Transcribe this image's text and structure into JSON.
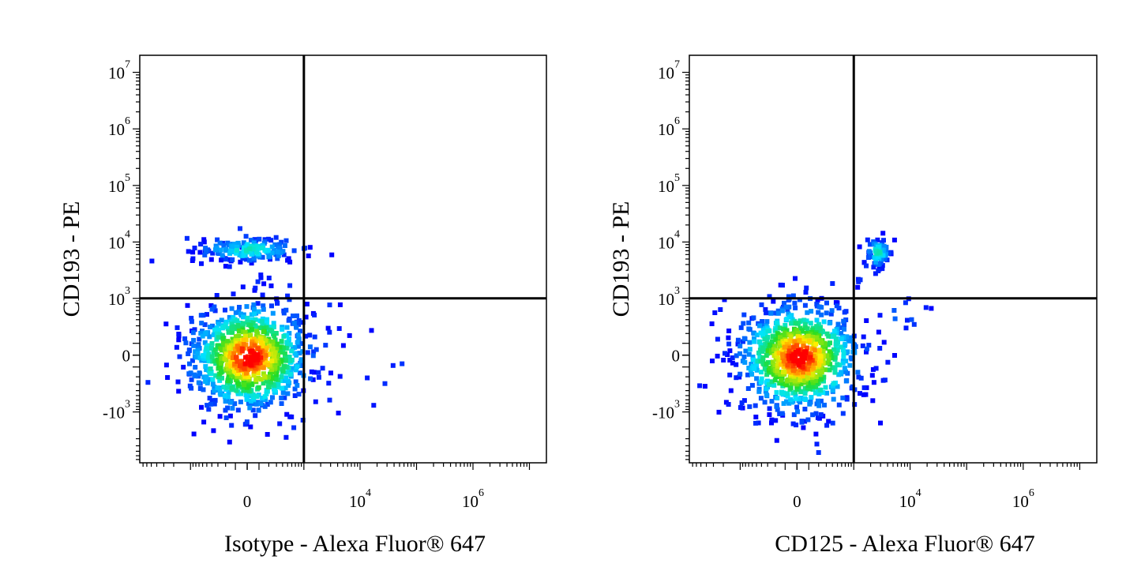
{
  "chart_data": [
    {
      "type": "scatter",
      "title": "",
      "xlabel": "Isotype - Alexa Fluor® 647",
      "ylabel": "CD193 - PE",
      "x_scale": "biexponential",
      "y_scale": "biexponential",
      "x_ticks": [
        {
          "base": "0",
          "exp": ""
        },
        {
          "base": "10",
          "exp": "4"
        },
        {
          "base": "10",
          "exp": "6"
        }
      ],
      "y_ticks": [
        {
          "base": "10",
          "exp": "7"
        },
        {
          "base": "10",
          "exp": "6"
        },
        {
          "base": "10",
          "exp": "5"
        },
        {
          "base": "10",
          "exp": "4"
        },
        {
          "base": "10",
          "exp": "3"
        },
        {
          "base": "0",
          "exp": ""
        },
        {
          "base": "-10",
          "exp": "3"
        }
      ],
      "quadrant_gate": {
        "x": 1000,
        "y": 1000
      },
      "colormap": "density (blue → cyan → green → yellow → red)",
      "populations": [
        {
          "id": "double-negative",
          "x_center": 0,
          "y_center": 0,
          "n": 900,
          "density_peak": "red"
        },
        {
          "id": "cd193-positive",
          "x_center": 0,
          "y_center": 8000,
          "n": 170,
          "density_peak": "cyan"
        },
        {
          "id": "x-positive-scatter",
          "x_center": 9000,
          "y_center": -100,
          "n": 8,
          "density_peak": "blue"
        }
      ]
    },
    {
      "type": "scatter",
      "title": "",
      "xlabel": "CD125 - Alexa Fluor® 647",
      "ylabel": "CD193 - PE",
      "x_scale": "biexponential",
      "y_scale": "biexponential",
      "x_ticks": [
        {
          "base": "0",
          "exp": ""
        },
        {
          "base": "10",
          "exp": "4"
        },
        {
          "base": "10",
          "exp": "6"
        }
      ],
      "y_ticks": [
        {
          "base": "10",
          "exp": "7"
        },
        {
          "base": "10",
          "exp": "6"
        },
        {
          "base": "10",
          "exp": "5"
        },
        {
          "base": "10",
          "exp": "4"
        },
        {
          "base": "10",
          "exp": "3"
        },
        {
          "base": "0",
          "exp": ""
        },
        {
          "base": "-10",
          "exp": "3"
        }
      ],
      "quadrant_gate": {
        "x": 1000,
        "y": 1000
      },
      "colormap": "density (blue → cyan → green → yellow → red)",
      "populations": [
        {
          "id": "double-negative",
          "x_center": 0,
          "y_center": 0,
          "n": 900,
          "density_peak": "red"
        },
        {
          "id": "double-positive",
          "x_center": 2500,
          "y_center": 7000,
          "n": 75,
          "density_peak": "cyan"
        },
        {
          "id": "cd125-positive",
          "x_center": 6000,
          "y_center": 500,
          "n": 12,
          "density_peak": "blue"
        }
      ]
    }
  ],
  "colors": {
    "low": "#0000ff",
    "mid_low": "#00e5ff",
    "mid": "#22dd22",
    "mid_high": "#ffee00",
    "high": "#ff0000",
    "axis": "#000000"
  }
}
